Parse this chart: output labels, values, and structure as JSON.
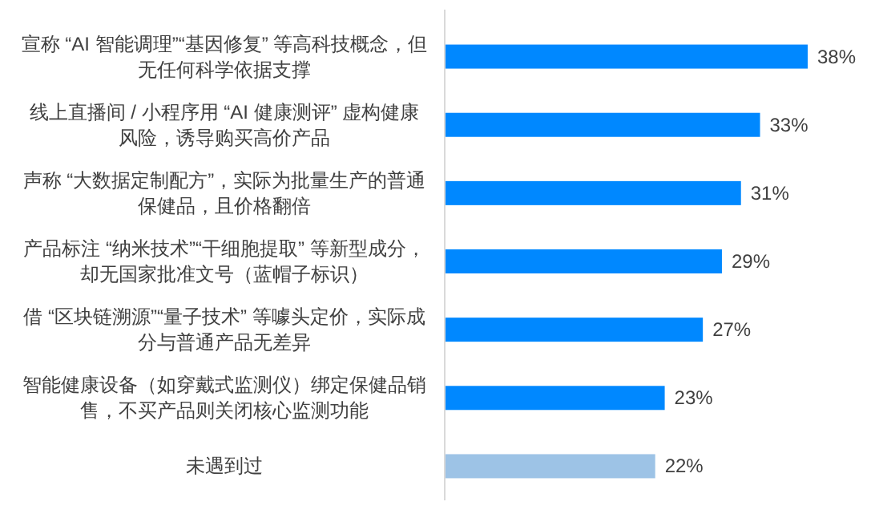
{
  "chart_data": {
    "type": "bar",
    "orientation": "horizontal",
    "categories": [
      "宣称 “AI 智能调理”“基因修复” 等高科技概念，但无任何科学依据支撑",
      "线上直播间 / 小程序用 “AI 健康测评” 虚构健康风险，诱导购买高价产品",
      "声称 “大数据定制配方”，实际为批量生产的普通保健品，且价格翻倍",
      "产品标注 “纳米技术”“干细胞提取” 等新型成分，却无国家批准文号（蓝帽子标识）",
      "借 “区块链溯源”“量子技术” 等噱头定价，实际成分与普通产品无差异",
      "智能健康设备（如穿戴式监测仪）绑定保健品销售，不买产品则关闭核心监测功能",
      "未遇到过"
    ],
    "values": [
      38,
      33,
      31,
      29,
      27,
      23,
      22
    ],
    "colors": [
      "#0088ff",
      "#0088ff",
      "#0088ff",
      "#0088ff",
      "#0088ff",
      "#0088ff",
      "#9dc3e6"
    ],
    "value_labels": [
      "38%",
      "33%",
      "31%",
      "29%",
      "27%",
      "23%",
      "22%"
    ]
  }
}
